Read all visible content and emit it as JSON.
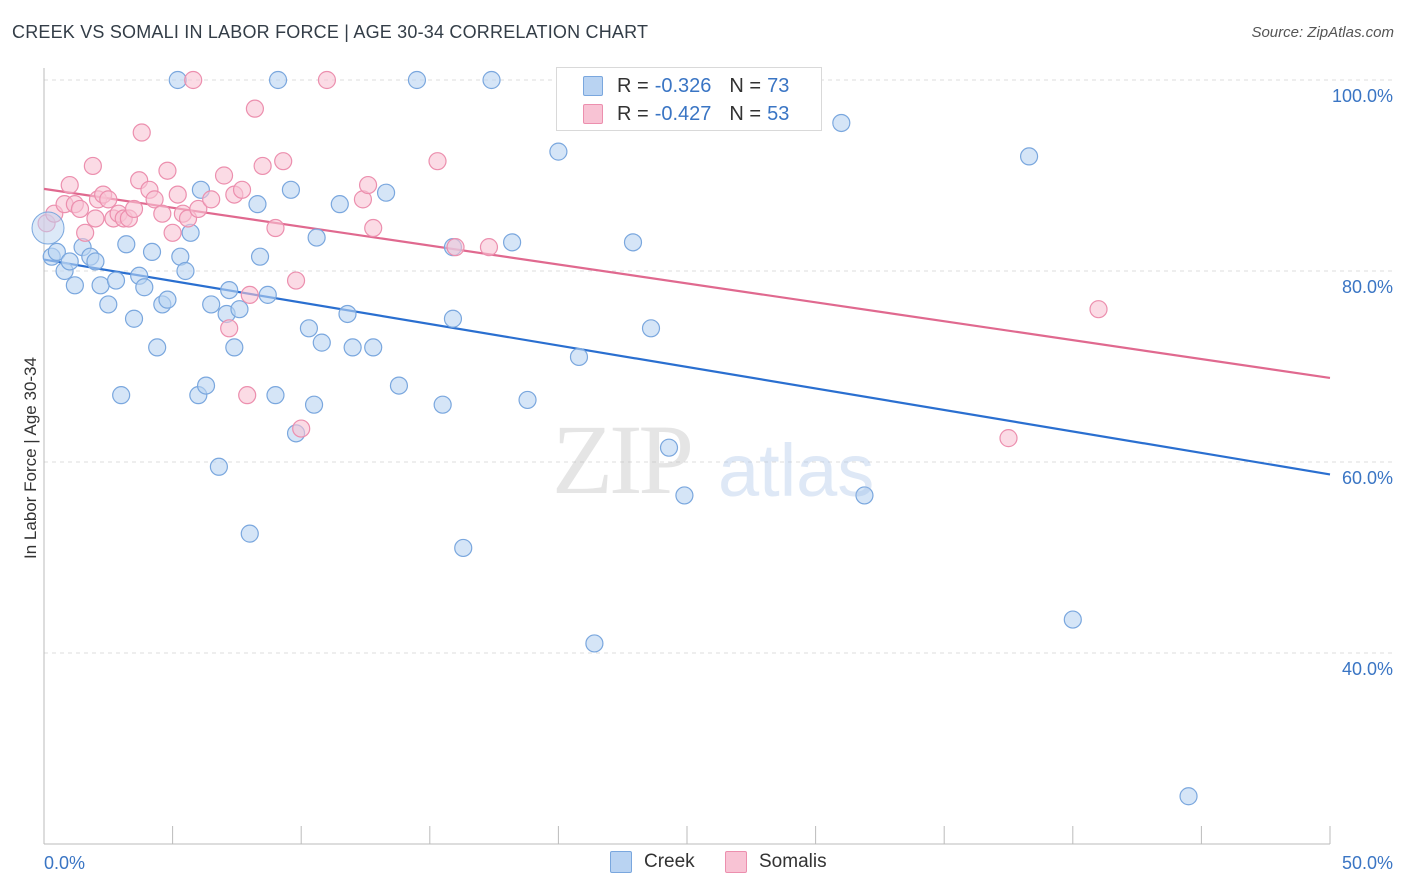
{
  "header": {
    "title": "CREEK VS SOMALI IN LABOR FORCE | AGE 30-34 CORRELATION CHART",
    "source": "Source: ZipAtlas.com"
  },
  "watermark": {
    "zip": "ZIP",
    "atlas": "atlas"
  },
  "legend": {
    "rows": [
      {
        "r_label": "R =",
        "r_value": "-0.326",
        "n_label": "N =",
        "n_value": "73"
      },
      {
        "r_label": "R =",
        "r_value": "-0.427",
        "n_label": "N =",
        "n_value": "53"
      }
    ],
    "bottom": [
      "Creek",
      "Somalis"
    ]
  },
  "colors": {
    "creek_fill": "#b9d3f2",
    "creek_stroke": "#7aa7de",
    "creek_line": "#2a6fd0",
    "somali_fill": "#f8c3d4",
    "somali_stroke": "#ec8fae",
    "somali_line": "#e0698f",
    "axis_text": "#3a75c4",
    "grid": "#dddddd"
  },
  "chart_data": {
    "type": "scatter",
    "title": "CREEK VS SOMALI IN LABOR FORCE | AGE 30-34 CORRELATION CHART",
    "xlabel": "",
    "ylabel": "In Labor Force | Age 30-34",
    "x_range": [
      0,
      50
    ],
    "y_range": [
      20,
      104
    ],
    "x_ticks": [
      "0.0%",
      "50.0%"
    ],
    "y_ticks": [
      {
        "value": 100,
        "label": "100.0%"
      },
      {
        "value": 80,
        "label": "80.0%"
      },
      {
        "value": 60,
        "label": "60.0%"
      },
      {
        "value": 40,
        "label": "40.0%"
      }
    ],
    "grid": true,
    "series": [
      {
        "name": "Creek",
        "trend": {
          "x": [
            0,
            50
          ],
          "y": [
            81.2,
            58.7
          ]
        },
        "points": [
          [
            0.3,
            81.5
          ],
          [
            0.5,
            82
          ],
          [
            0.8,
            80
          ],
          [
            1.0,
            81
          ],
          [
            1.2,
            78.5
          ],
          [
            1.5,
            82.5
          ],
          [
            1.8,
            81.5
          ],
          [
            2.0,
            81
          ],
          [
            2.2,
            78.5
          ],
          [
            2.5,
            76.5
          ],
          [
            2.8,
            79
          ],
          [
            3.0,
            67
          ],
          [
            3.2,
            82.8
          ],
          [
            3.5,
            75
          ],
          [
            3.7,
            79.5
          ],
          [
            3.9,
            78.3
          ],
          [
            4.2,
            82
          ],
          [
            4.4,
            72
          ],
          [
            4.6,
            76.5
          ],
          [
            4.8,
            77
          ],
          [
            5.2,
            100
          ],
          [
            5.3,
            81.5
          ],
          [
            5.5,
            80
          ],
          [
            5.7,
            84
          ],
          [
            6.0,
            67
          ],
          [
            6.1,
            88.5
          ],
          [
            6.3,
            68
          ],
          [
            6.5,
            76.5
          ],
          [
            6.8,
            59.5
          ],
          [
            7.1,
            75.5
          ],
          [
            7.2,
            78
          ],
          [
            7.4,
            72
          ],
          [
            7.6,
            76
          ],
          [
            8.0,
            52.5
          ],
          [
            8.3,
            87
          ],
          [
            8.4,
            81.5
          ],
          [
            8.7,
            77.5
          ],
          [
            9.0,
            67
          ],
          [
            9.1,
            100
          ],
          [
            9.6,
            88.5
          ],
          [
            9.8,
            63
          ],
          [
            10.3,
            74
          ],
          [
            10.5,
            66
          ],
          [
            10.6,
            83.5
          ],
          [
            10.8,
            72.5
          ],
          [
            11.5,
            87
          ],
          [
            11.8,
            75.5
          ],
          [
            12.0,
            72
          ],
          [
            12.8,
            72
          ],
          [
            13.3,
            88.2
          ],
          [
            13.8,
            68
          ],
          [
            14.5,
            100
          ],
          [
            15.5,
            66
          ],
          [
            15.9,
            82.5
          ],
          [
            15.9,
            75
          ],
          [
            16.3,
            51
          ],
          [
            17.4,
            100
          ],
          [
            18.2,
            83
          ],
          [
            18.8,
            66.5
          ],
          [
            20.0,
            92.5
          ],
          [
            20.8,
            71
          ],
          [
            21.4,
            41
          ],
          [
            22.9,
            83
          ],
          [
            23.6,
            74
          ],
          [
            24.3,
            61.5
          ],
          [
            24.9,
            56.5
          ],
          [
            31.0,
            95.5
          ],
          [
            31.9,
            56.5
          ],
          [
            38.3,
            92
          ],
          [
            40.0,
            43.5
          ],
          [
            44.5,
            25
          ]
        ]
      },
      {
        "name": "Somalis",
        "trend": {
          "x": [
            0,
            50
          ],
          "y": [
            88.6,
            68.8
          ]
        },
        "points": [
          [
            0.1,
            85
          ],
          [
            0.4,
            86
          ],
          [
            0.8,
            87
          ],
          [
            1.0,
            89
          ],
          [
            1.2,
            87
          ],
          [
            1.4,
            86.5
          ],
          [
            1.6,
            84
          ],
          [
            1.9,
            91
          ],
          [
            2.0,
            85.5
          ],
          [
            2.1,
            87.5
          ],
          [
            2.3,
            88
          ],
          [
            2.5,
            87.5
          ],
          [
            2.7,
            85.5
          ],
          [
            2.9,
            86
          ],
          [
            3.1,
            85.5
          ],
          [
            3.3,
            85.5
          ],
          [
            3.5,
            86.5
          ],
          [
            3.7,
            89.5
          ],
          [
            3.8,
            94.5
          ],
          [
            4.1,
            88.5
          ],
          [
            4.3,
            87.5
          ],
          [
            4.6,
            86
          ],
          [
            4.8,
            90.5
          ],
          [
            5.0,
            84
          ],
          [
            5.2,
            88
          ],
          [
            5.4,
            86
          ],
          [
            5.6,
            85.5
          ],
          [
            5.8,
            100
          ],
          [
            6.0,
            86.5
          ],
          [
            6.5,
            87.5
          ],
          [
            7.0,
            90
          ],
          [
            7.2,
            74
          ],
          [
            7.4,
            88
          ],
          [
            7.7,
            88.5
          ],
          [
            7.9,
            67
          ],
          [
            8.0,
            77.5
          ],
          [
            8.2,
            97
          ],
          [
            8.5,
            91
          ],
          [
            9.0,
            84.5
          ],
          [
            9.3,
            91.5
          ],
          [
            9.8,
            79
          ],
          [
            10.0,
            63.5
          ],
          [
            11.0,
            100
          ],
          [
            12.4,
            87.5
          ],
          [
            12.6,
            89
          ],
          [
            12.8,
            84.5
          ],
          [
            15.3,
            91.5
          ],
          [
            16.0,
            82.5
          ],
          [
            17.3,
            82.5
          ],
          [
            37.5,
            62.5
          ],
          [
            41.0,
            76
          ]
        ]
      }
    ]
  }
}
